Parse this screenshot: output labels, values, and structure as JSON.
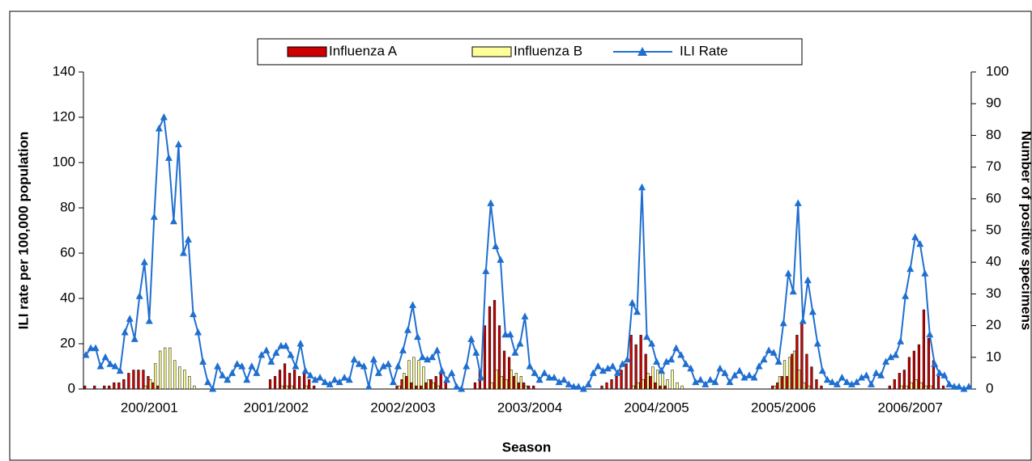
{
  "chart_data": {
    "type": "bar-line",
    "xlabel": "Season",
    "ylabel": "ILI rate per 100,000 population",
    "y2label": "Number of positive specimens",
    "categories": [
      null,
      null,
      null,
      null,
      null,
      null,
      null,
      null,
      null,
      null,
      null,
      null,
      null,
      "200/2001",
      null,
      null,
      null,
      null,
      null,
      null,
      null,
      null,
      null,
      null,
      null,
      null,
      null,
      null,
      null,
      null,
      null,
      null,
      null,
      null,
      null,
      null,
      null,
      null,
      null,
      "2001/2002",
      null,
      null,
      null,
      null,
      null,
      null,
      null,
      null,
      null,
      null,
      null,
      null,
      null,
      null,
      null,
      null,
      null,
      null,
      null,
      null,
      null,
      null,
      null,
      null,
      null,
      "2002/2003",
      null,
      null,
      null,
      null,
      null,
      null,
      null,
      null,
      null,
      null,
      null,
      null,
      null,
      null,
      null,
      null,
      null,
      null,
      null,
      null,
      null,
      null,
      null,
      null,
      null,
      "2003/2004",
      null,
      null,
      null,
      null,
      null,
      null,
      null,
      null,
      null,
      null,
      null,
      null,
      null,
      null,
      null,
      null,
      null,
      null,
      null,
      null,
      null,
      null,
      null,
      null,
      null,
      "2004/2005",
      null,
      null,
      null,
      null,
      null,
      null,
      null,
      null,
      null,
      null,
      null,
      null,
      null,
      null,
      null,
      null,
      null,
      null,
      null,
      null,
      null,
      null,
      null,
      null,
      null,
      "2005/2006",
      null,
      null,
      null,
      null,
      null,
      null,
      null,
      null,
      null,
      null,
      null,
      null,
      null,
      null,
      null,
      null,
      null,
      null,
      null,
      null,
      null,
      null,
      null,
      null,
      null,
      "2006/2007",
      null,
      null,
      null,
      null,
      null,
      null,
      null,
      null,
      null,
      null,
      null,
      null
    ],
    "series": [
      {
        "name": "Influenza A",
        "kind": "bar",
        "axis": "y2",
        "color": "#cc0000",
        "values": [
          1,
          0,
          1,
          0,
          1,
          1,
          2,
          2,
          3,
          5,
          6,
          6,
          6,
          4,
          2,
          1,
          0,
          0,
          0,
          0,
          0,
          0,
          0,
          0,
          0,
          0,
          0,
          0,
          0,
          0,
          0,
          0,
          0,
          0,
          0,
          0,
          0,
          0,
          3,
          4,
          6,
          8,
          5,
          6,
          4,
          5,
          3,
          1,
          0,
          0,
          0,
          0,
          0,
          0,
          0,
          0,
          0,
          0,
          0,
          0,
          0,
          0,
          0,
          0,
          1,
          3,
          4,
          2,
          1,
          1,
          2,
          3,
          4,
          5,
          2,
          0,
          0,
          0,
          0,
          0,
          2,
          6,
          20,
          26,
          28,
          20,
          12,
          10,
          4,
          2,
          2,
          1,
          1,
          0,
          0,
          0,
          0,
          0,
          0,
          0,
          0,
          0,
          0,
          0,
          0,
          0,
          1,
          2,
          3,
          4,
          6,
          8,
          17,
          14,
          17,
          11,
          4,
          2,
          1,
          1,
          0,
          0,
          0,
          0,
          0,
          0,
          0,
          0,
          0,
          0,
          0,
          0,
          0,
          0,
          0,
          0,
          0,
          0,
          0,
          0,
          0,
          1,
          2,
          4,
          4,
          11,
          17,
          21,
          11,
          7,
          3,
          1,
          0,
          0,
          0,
          0,
          0,
          0,
          0,
          0,
          0,
          0,
          0,
          0,
          0,
          1,
          3,
          5,
          6,
          10,
          12,
          14,
          25,
          16,
          9,
          4,
          1,
          0,
          0,
          0,
          0,
          0
        ]
      },
      {
        "name": "Influenza B",
        "kind": "bar",
        "axis": "y2",
        "color": "#ffff99",
        "values": [
          0,
          0,
          0,
          0,
          0,
          0,
          0,
          0,
          0,
          0,
          0,
          0,
          1,
          3,
          8,
          12,
          13,
          13,
          9,
          7,
          6,
          4,
          1,
          0,
          0,
          0,
          0,
          0,
          0,
          0,
          0,
          0,
          0,
          0,
          0,
          0,
          0,
          0,
          0,
          0,
          1,
          1,
          1,
          0,
          0,
          1,
          0,
          0,
          0,
          0,
          0,
          0,
          0,
          0,
          0,
          0,
          0,
          0,
          0,
          0,
          0,
          0,
          0,
          0,
          1,
          5,
          9,
          10,
          9,
          7,
          3,
          2,
          1,
          0,
          0,
          0,
          0,
          0,
          0,
          0,
          0,
          0,
          0,
          2,
          6,
          4,
          3,
          6,
          5,
          4,
          1,
          0,
          0,
          0,
          0,
          0,
          0,
          0,
          0,
          0,
          0,
          0,
          0,
          0,
          0,
          0,
          0,
          0,
          0,
          0,
          0,
          0,
          1,
          2,
          3,
          5,
          7,
          6,
          5,
          3,
          6,
          2,
          1,
          0,
          0,
          0,
          0,
          0,
          0,
          0,
          0,
          0,
          0,
          0,
          0,
          0,
          0,
          0,
          0,
          0,
          0,
          1,
          4,
          9,
          10,
          12,
          6,
          2,
          1,
          0,
          0,
          0,
          0,
          0,
          0,
          0,
          0,
          0,
          0,
          0,
          0,
          0,
          0,
          0,
          0,
          0,
          0,
          1,
          1,
          2,
          3,
          2,
          1,
          1,
          0,
          0,
          0,
          0,
          0,
          0,
          0,
          0
        ]
      },
      {
        "name": "ILI Rate",
        "kind": "line",
        "color": "#1f6fd0",
        "values": [
          15,
          18,
          18,
          10,
          14,
          11,
          10,
          8,
          25,
          31,
          22,
          41,
          56,
          30,
          76,
          115,
          120,
          102,
          74,
          108,
          60,
          66,
          33,
          25,
          12,
          3,
          0,
          10,
          6,
          4,
          7,
          11,
          10,
          4,
          10,
          7,
          15,
          17,
          12,
          16,
          19,
          19,
          15,
          10,
          20,
          8,
          6,
          4,
          5,
          3,
          2,
          4,
          3,
          5,
          4,
          13,
          11,
          10,
          1,
          13,
          7,
          10,
          11,
          3,
          10,
          17,
          26,
          37,
          23,
          14,
          13,
          14,
          17,
          8,
          4,
          7,
          1,
          0,
          10,
          22,
          16,
          5,
          52,
          82,
          63,
          57,
          24,
          24,
          16,
          20,
          32,
          10,
          7,
          4,
          7,
          5,
          5,
          3,
          4,
          2,
          1,
          1,
          0,
          2,
          7,
          10,
          8,
          9,
          10,
          7,
          11,
          13,
          38,
          34,
          89,
          23,
          20,
          12,
          8,
          12,
          13,
          18,
          15,
          11,
          9,
          3,
          4,
          2,
          4,
          3,
          9,
          7,
          3,
          6,
          8,
          5,
          6,
          5,
          10,
          13,
          17,
          16,
          12,
          29,
          51,
          43,
          82,
          30,
          48,
          34,
          20,
          8,
          4,
          3,
          2,
          5,
          3,
          2,
          3,
          5,
          6,
          2,
          7,
          6,
          12,
          14,
          15,
          21,
          41,
          53,
          67,
          64,
          51,
          24,
          11,
          7,
          6,
          2,
          1,
          1,
          0,
          1
        ]
      }
    ],
    "ylim": [
      0,
      140
    ],
    "yticks": [
      0,
      20,
      40,
      60,
      80,
      100,
      120,
      140
    ],
    "y2lim": [
      0,
      100
    ],
    "y2ticks": [
      0,
      10,
      20,
      30,
      40,
      50,
      60,
      70,
      80,
      90,
      100
    ],
    "grid": false,
    "legend": "top"
  }
}
